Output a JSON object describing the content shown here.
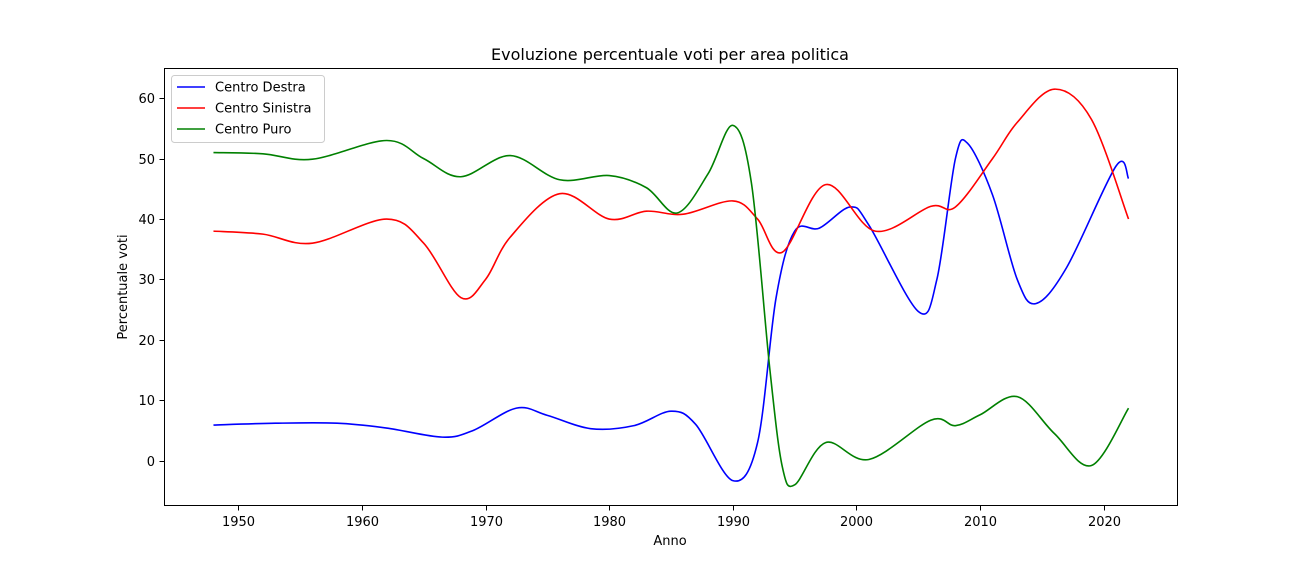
{
  "chart_data": {
    "type": "line",
    "title": "Evoluzione percentuale voti per area politica",
    "xlabel": "Anno",
    "ylabel": "Percentuale voti",
    "xlim": [
      1944,
      2026
    ],
    "ylim": [
      -7.5,
      65
    ],
    "xticks": [
      1950,
      1960,
      1970,
      1980,
      1990,
      2000,
      2010,
      2020
    ],
    "yticks": [
      0,
      10,
      20,
      30,
      40,
      50,
      60
    ],
    "grid": false,
    "legend_position": "top-left",
    "series": [
      {
        "name": "Centro Destra",
        "color": "#0000ff",
        "points": [
          [
            1948,
            5.9
          ],
          [
            1953,
            6.2
          ],
          [
            1958,
            6.2
          ],
          [
            1962,
            5.4
          ],
          [
            1966.5,
            3.9
          ],
          [
            1969,
            5.0
          ],
          [
            1972.5,
            8.7
          ],
          [
            1975,
            7.5
          ],
          [
            1978.5,
            5.3
          ],
          [
            1982,
            5.8
          ],
          [
            1985,
            8.2
          ],
          [
            1987,
            6.0
          ],
          [
            1990,
            -3.3
          ],
          [
            1992,
            3.0
          ],
          [
            1993.5,
            27.0
          ],
          [
            1995,
            38.0
          ],
          [
            1997,
            38.5
          ],
          [
            1999.5,
            42.0
          ],
          [
            2001,
            39.0
          ],
          [
            2005,
            24.7
          ],
          [
            2006.5,
            30.0
          ],
          [
            2008,
            50.0
          ],
          [
            2009,
            52.5
          ],
          [
            2011,
            44.0
          ],
          [
            2013,
            30.0
          ],
          [
            2014.5,
            26.0
          ],
          [
            2017,
            32.0
          ],
          [
            2021,
            48.8
          ],
          [
            2022,
            46.7
          ]
        ]
      },
      {
        "name": "Centro Sinistra",
        "color": "#ff0000",
        "points": [
          [
            1948,
            38.0
          ],
          [
            1952,
            37.5
          ],
          [
            1956,
            36.0
          ],
          [
            1962,
            40.0
          ],
          [
            1965,
            36.0
          ],
          [
            1968,
            27.0
          ],
          [
            1970,
            30.0
          ],
          [
            1972,
            37.0
          ],
          [
            1976,
            44.2
          ],
          [
            1980,
            40.0
          ],
          [
            1983,
            41.3
          ],
          [
            1986,
            40.8
          ],
          [
            1990,
            43.0
          ],
          [
            1992,
            40.0
          ],
          [
            1994,
            34.5
          ],
          [
            1997.5,
            45.7
          ],
          [
            2001.5,
            38.0
          ],
          [
            2006,
            42.1
          ],
          [
            2008,
            42.0
          ],
          [
            2011,
            50.0
          ],
          [
            2013,
            56.0
          ],
          [
            2016,
            61.5
          ],
          [
            2019,
            56.5
          ],
          [
            2022,
            40.0
          ]
        ]
      },
      {
        "name": "Centro Puro",
        "color": "#008000",
        "points": [
          [
            1948,
            51.0
          ],
          [
            1952,
            50.8
          ],
          [
            1956,
            49.9
          ],
          [
            1962,
            53.0
          ],
          [
            1965,
            50.0
          ],
          [
            1968,
            47.0
          ],
          [
            1972,
            50.5
          ],
          [
            1976,
            46.5
          ],
          [
            1980,
            47.2
          ],
          [
            1983,
            45.2
          ],
          [
            1985.5,
            41.0
          ],
          [
            1988,
            47.5
          ],
          [
            1990,
            55.5
          ],
          [
            1991.5,
            46.0
          ],
          [
            1993,
            15.0
          ],
          [
            1994,
            -1.0
          ],
          [
            1995,
            -4.0
          ],
          [
            1997.5,
            3.0
          ],
          [
            2001,
            0.2
          ],
          [
            2006,
            6.7
          ],
          [
            2008,
            5.8
          ],
          [
            2010,
            7.6
          ],
          [
            2013,
            10.6
          ],
          [
            2016,
            4.5
          ],
          [
            2019,
            -0.8
          ],
          [
            2022,
            8.7
          ]
        ]
      }
    ]
  }
}
